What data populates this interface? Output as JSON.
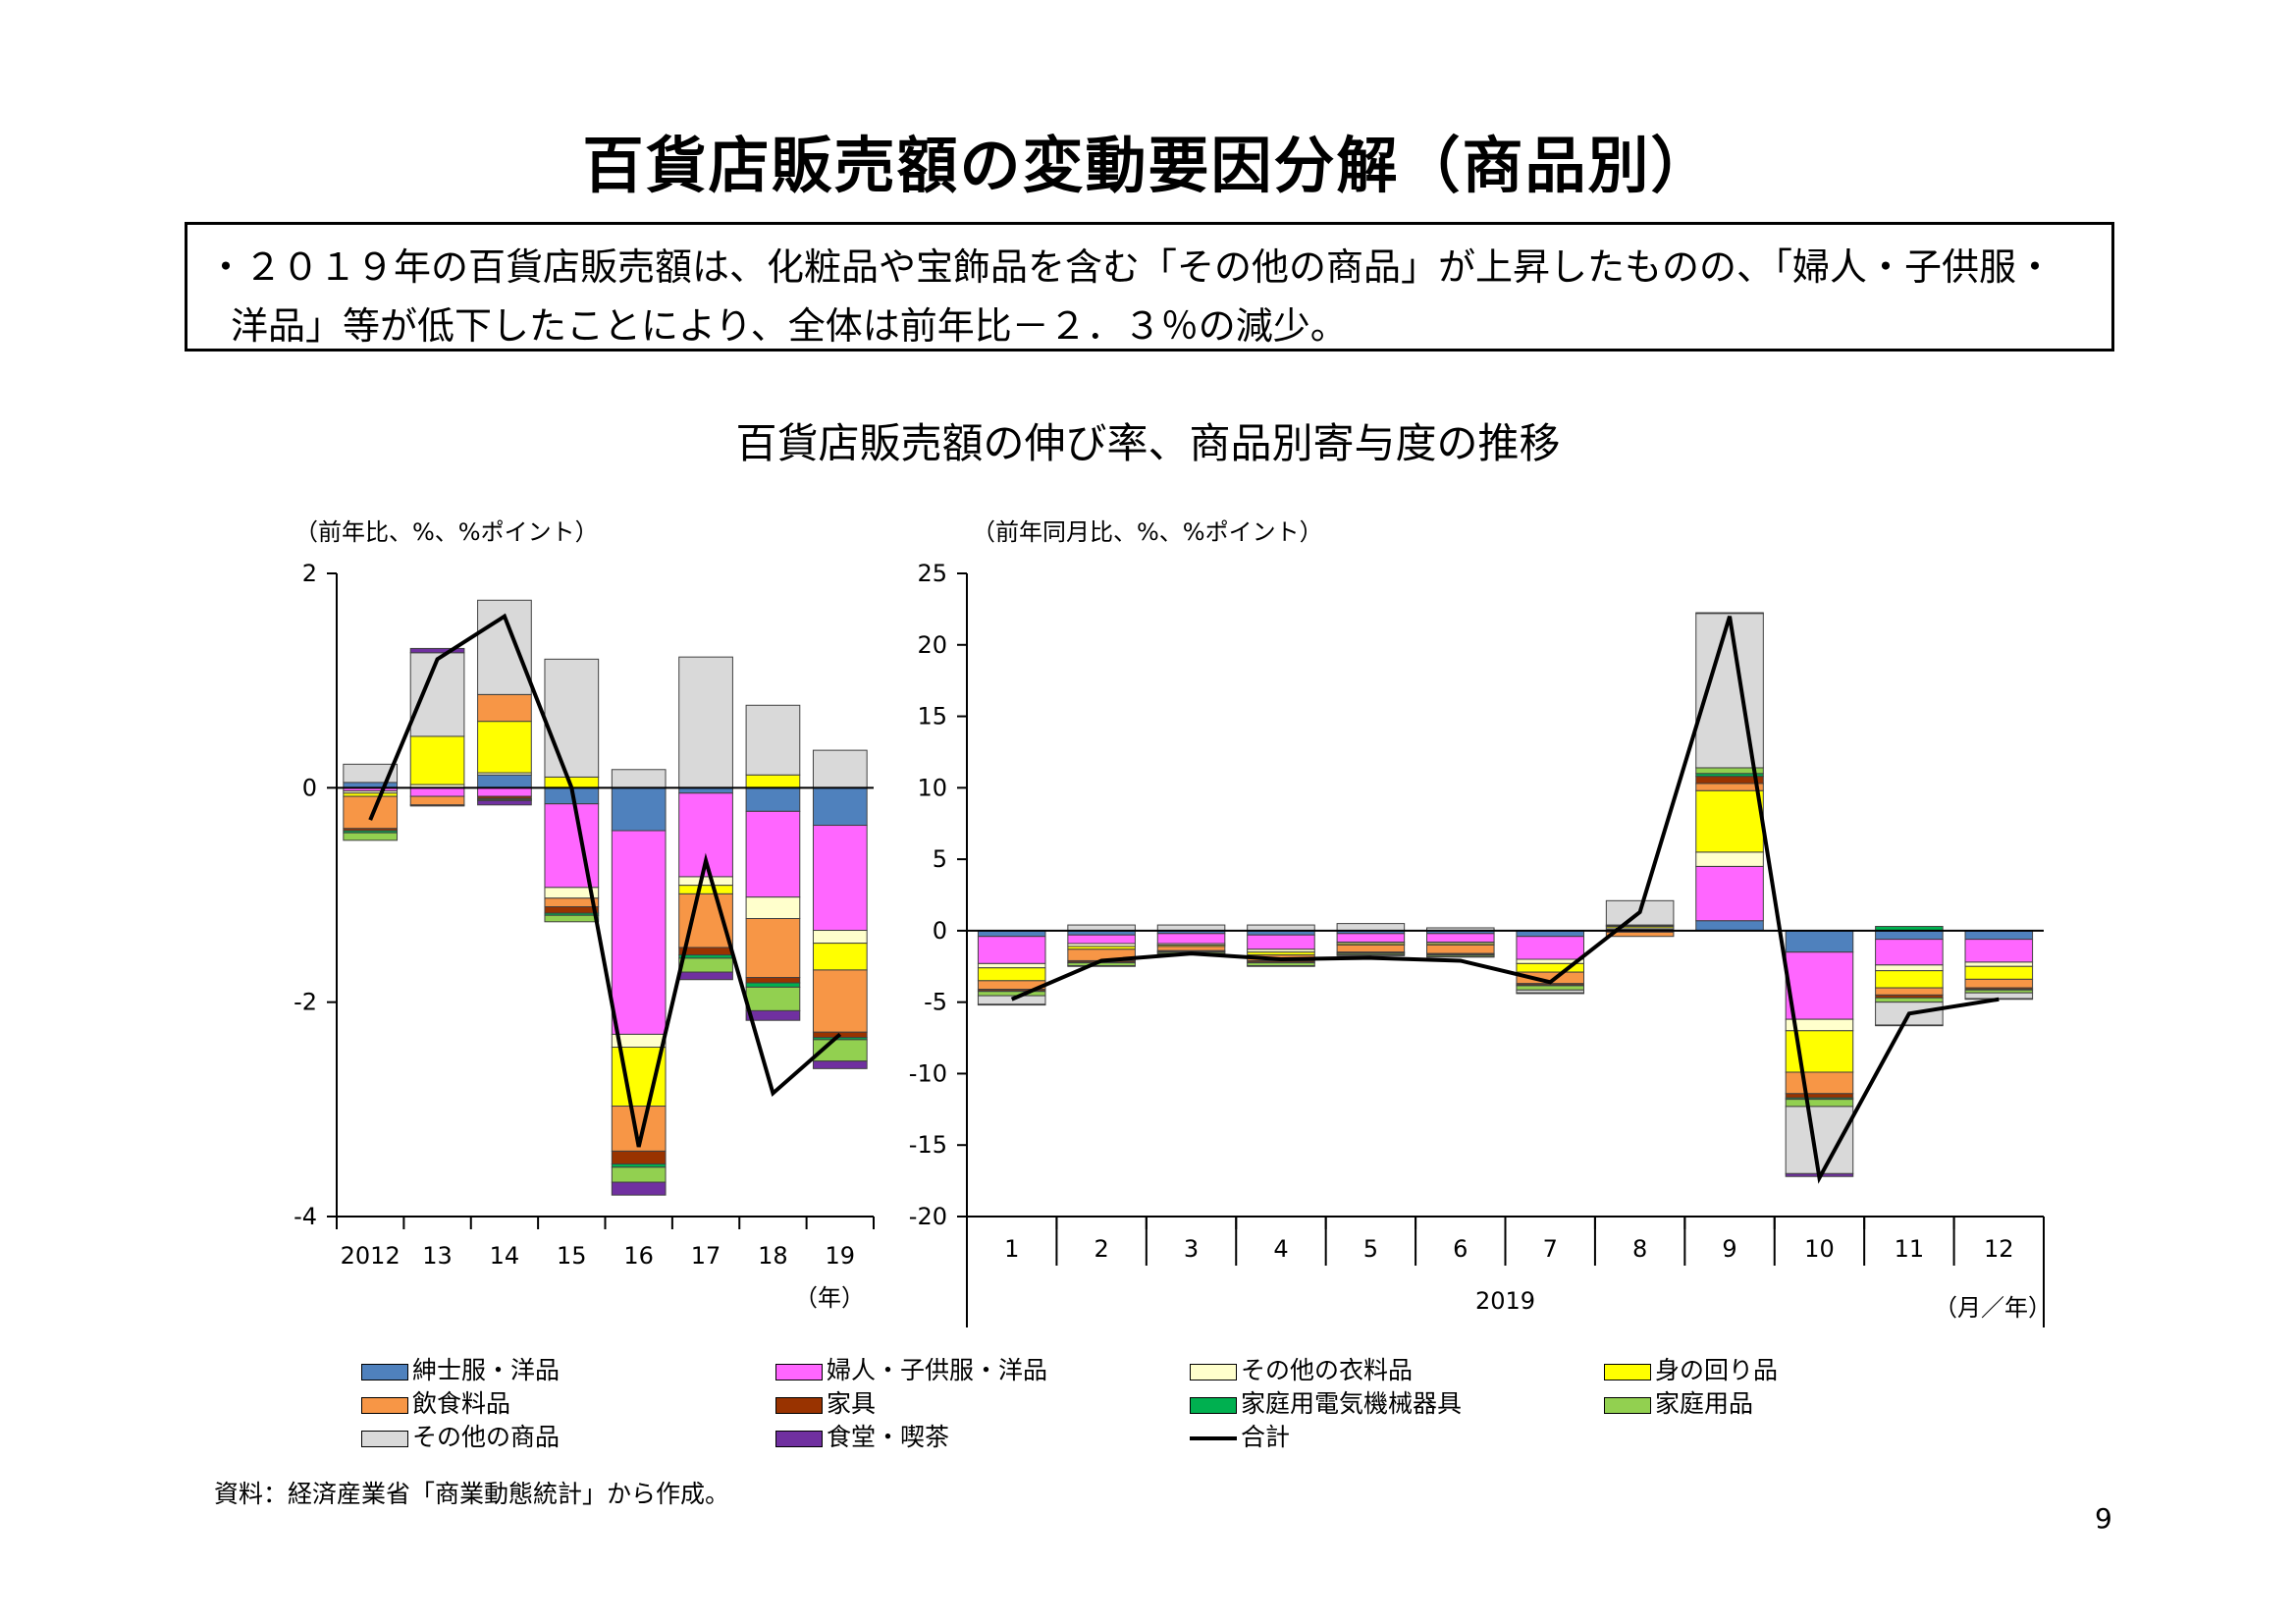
{
  "title": "百貨店販売額の変動要因分解（商品別）",
  "summary": {
    "line1": "・２０１９年の百貨店販売額は、化粧品や宝飾品を含む「その他の商品」が上昇したものの、「婦人・子供服・",
    "line2": "洋品」等が低下したことにより、全体は前年比－２．３％の減少。"
  },
  "chart_title": "百貨店販売額の伸び率、商品別寄与度の推移",
  "series": [
    {
      "key": "mens",
      "name": "紳士服・洋品",
      "color": "#4f81bd"
    },
    {
      "key": "womens",
      "name": "婦人・子供服・洋品",
      "color": "#ff66ff"
    },
    {
      "key": "otherclothing",
      "name": "その他の衣料品",
      "color": "#ffffcc"
    },
    {
      "key": "accessories",
      "name": "身の回り品",
      "color": "#ffff00"
    },
    {
      "key": "food",
      "name": "飲食料品",
      "color": "#f79646"
    },
    {
      "key": "furniture",
      "name": "家具",
      "color": "#993300"
    },
    {
      "key": "appliances",
      "name": "家庭用電気機械器具",
      "color": "#00b050"
    },
    {
      "key": "household",
      "name": "家庭用品",
      "color": "#92d050"
    },
    {
      "key": "othergoods",
      "name": "その他の商品",
      "color": "#d9d9d9"
    },
    {
      "key": "dining",
      "name": "食堂・喫茶",
      "color": "#7030a0"
    }
  ],
  "total_name": "合計",
  "chart_data": [
    {
      "type": "bar",
      "stacked": true,
      "unit_label": "（前年比、%、%ポイント）",
      "x_unit": "（年）",
      "categories": [
        "2012",
        "13",
        "14",
        "15",
        "16",
        "17",
        "18",
        "19"
      ],
      "ylim": [
        -4,
        2
      ],
      "yticks": [
        2,
        0,
        -2,
        -4
      ],
      "series_values": {
        "mens": [
          0.05,
          0,
          0.12,
          -0.15,
          -0.4,
          -0.05,
          -0.22,
          -0.35
        ],
        "womens": [
          -0.03,
          -0.08,
          -0.08,
          -0.78,
          -1.9,
          -0.78,
          -0.8,
          -0.98
        ],
        "otherclothing": [
          -0.02,
          0.03,
          0.02,
          -0.1,
          -0.12,
          -0.08,
          -0.2,
          -0.12
        ],
        "accessories": [
          -0.03,
          0.45,
          0.48,
          0.1,
          -0.55,
          -0.08,
          0.12,
          -0.25
        ],
        "food": [
          -0.3,
          -0.08,
          0.25,
          -0.08,
          -0.42,
          -0.5,
          -0.55,
          -0.58
        ],
        "furniture": [
          -0.02,
          -0.01,
          -0.02,
          -0.06,
          -0.12,
          -0.07,
          -0.05,
          -0.05
        ],
        "appliances": [
          -0.02,
          0,
          -0.01,
          -0.02,
          -0.03,
          -0.03,
          -0.04,
          -0.02
        ],
        "household": [
          -0.07,
          0,
          -0.01,
          -0.06,
          -0.14,
          -0.13,
          -0.22,
          -0.2
        ],
        "othergoods": [
          0.17,
          0.78,
          0.88,
          1.1,
          0.17,
          1.22,
          0.65,
          0.35
        ],
        "dining": [
          0,
          0.04,
          -0.04,
          0,
          -0.12,
          -0.07,
          -0.09,
          -0.07
        ]
      },
      "total": [
        -0.3,
        1.2,
        1.6,
        0,
        -3.35,
        -0.68,
        -2.85,
        -2.3
      ]
    },
    {
      "type": "bar",
      "stacked": true,
      "unit_label": "（前年同月比、%、%ポイント）",
      "x_unit": "（月／年）",
      "x_group_label": "2019",
      "categories": [
        "1",
        "2",
        "3",
        "4",
        "5",
        "6",
        "7",
        "8",
        "9",
        "10",
        "11",
        "12"
      ],
      "ylim": [
        -20,
        25
      ],
      "yticks": [
        25,
        20,
        15,
        10,
        5,
        0,
        -5,
        -10,
        -15,
        -20
      ],
      "series_values": {
        "mens": [
          -0.4,
          -0.3,
          -0.2,
          -0.3,
          -0.2,
          -0.2,
          -0.4,
          0.1,
          0.7,
          -1.5,
          -0.6,
          -0.6
        ],
        "womens": [
          -1.9,
          -0.6,
          -0.7,
          -1,
          -0.6,
          -0.6,
          -1.6,
          -0.1,
          3.8,
          -4.7,
          -1.8,
          -1.6
        ],
        "otherclothing": [
          -0.3,
          -0.2,
          -0.1,
          -0.2,
          -0.1,
          -0.1,
          -0.3,
          0.1,
          1,
          -0.8,
          -0.4,
          -0.3
        ],
        "accessories": [
          -0.9,
          -0.2,
          -0.1,
          -0.2,
          -0.1,
          -0.1,
          -0.6,
          0.1,
          4.3,
          -2.9,
          -1.2,
          -0.9
        ],
        "food": [
          -0.6,
          -0.8,
          -0.3,
          -0.4,
          -0.5,
          -0.6,
          -0.8,
          -0.3,
          0.5,
          -1.5,
          -0.5,
          -0.6
        ],
        "furniture": [
          -0.1,
          -0.1,
          -0.05,
          -0.1,
          -0.05,
          -0.05,
          -0.1,
          0.05,
          0.5,
          -0.3,
          -0.2,
          -0.1
        ],
        "appliances": [
          -0.05,
          -0.05,
          -0.05,
          -0.05,
          -0.05,
          -0.05,
          -0.05,
          0,
          0.2,
          -0.1,
          0.3,
          -0.05
        ],
        "household": [
          -0.3,
          -0.2,
          -0.1,
          -0.2,
          -0.1,
          -0.1,
          -0.3,
          0.05,
          0.4,
          -0.5,
          -0.3,
          -0.2
        ],
        "othergoods": [
          -0.6,
          0.4,
          0.4,
          0.4,
          0.5,
          0.2,
          -0.2,
          1.7,
          10.8,
          -4.7,
          -1.6,
          -0.4
        ],
        "dining": [
          -0.05,
          -0.05,
          -0.05,
          -0.05,
          -0.05,
          -0.05,
          -0.05,
          0,
          0.05,
          -0.2,
          -0.05,
          -0.05
        ]
      },
      "total": [
        -4.8,
        -2.1,
        -1.6,
        -2,
        -1.9,
        -2.1,
        -3.6,
        1.3,
        22,
        -17.3,
        -5.8,
        -4.8
      ]
    }
  ],
  "legend": {
    "row1": [
      "mens",
      "womens",
      "otherclothing",
      "accessories"
    ],
    "row2": [
      "food",
      "furniture",
      "appliances",
      "household"
    ],
    "row3": [
      "othergoods",
      "dining",
      "total"
    ]
  },
  "source": "資料：経済産業省「商業動態統計」から作成。",
  "page_number": "9"
}
